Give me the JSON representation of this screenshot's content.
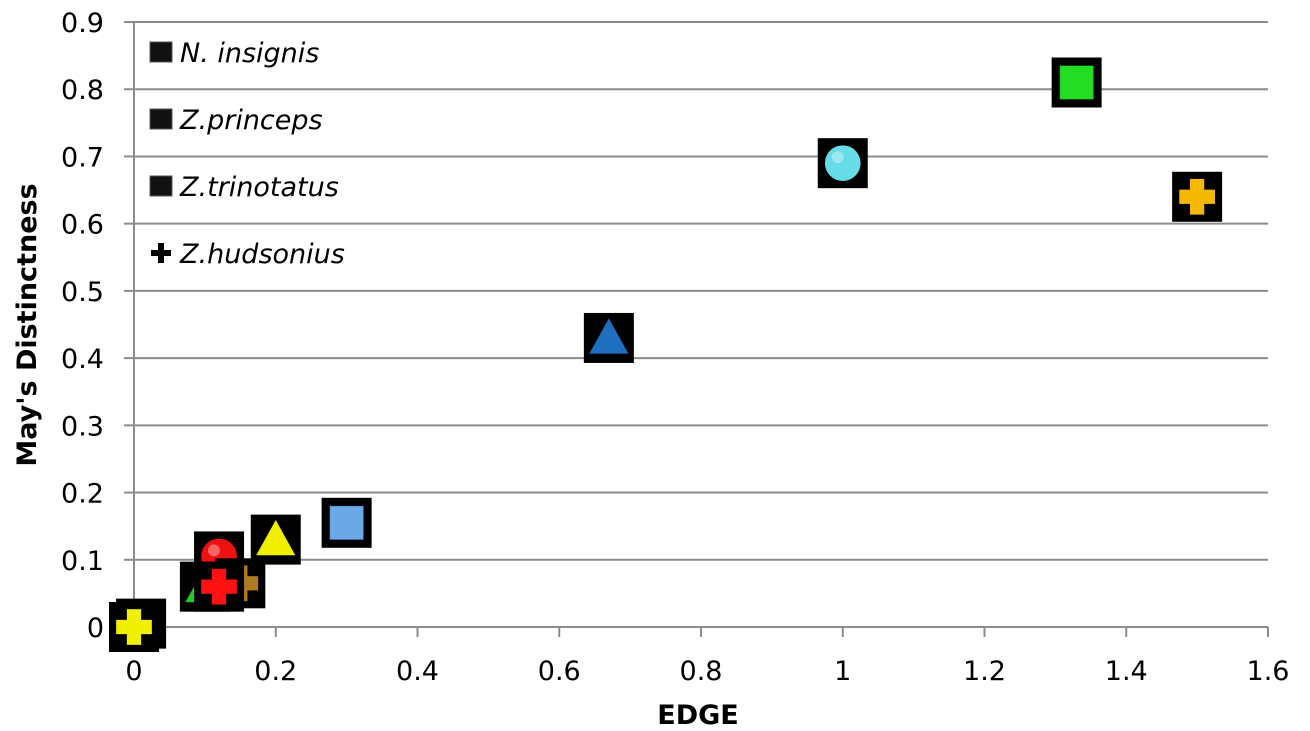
{
  "chart_data": {
    "type": "scatter",
    "title": "",
    "xlabel": "EDGE",
    "ylabel": "May's Distinctness",
    "xlim": [
      0,
      1.6
    ],
    "ylim": [
      0,
      0.9
    ],
    "x_ticks": [
      "0",
      "0.2",
      "0.4",
      "0.6",
      "0.8",
      "1",
      "1.2",
      "1.4",
      "1.6"
    ],
    "y_ticks": [
      "0",
      "0.1",
      "0.2",
      "0.3",
      "0.4",
      "0.5",
      "0.6",
      "0.7",
      "0.8",
      "0.9"
    ],
    "grid": "horizontal",
    "legend_position": "top-left",
    "legend": [
      {
        "name": "N. insignis",
        "marker": "square"
      },
      {
        "name": "Z.princeps",
        "marker": "square"
      },
      {
        "name": "Z.trinotatus",
        "marker": "square"
      },
      {
        "name": "Z.hudsonius",
        "marker": "plus"
      }
    ],
    "points": [
      {
        "x": 1.33,
        "y": 0.81,
        "marker": "square",
        "color": "#22dd22"
      },
      {
        "x": 1.0,
        "y": 0.69,
        "marker": "circle",
        "color": "#66dde8"
      },
      {
        "x": 1.5,
        "y": 0.64,
        "marker": "plus",
        "color": "#f5b800"
      },
      {
        "x": 0.67,
        "y": 0.43,
        "marker": "triangle",
        "color": "#1f6fc0"
      },
      {
        "x": 0.3,
        "y": 0.155,
        "marker": "square",
        "color": "#6aa8e8"
      },
      {
        "x": 0.2,
        "y": 0.13,
        "marker": "triangle",
        "color": "#f0f000"
      },
      {
        "x": 0.12,
        "y": 0.105,
        "marker": "circle",
        "color": "#ee1111"
      },
      {
        "x": 0.1,
        "y": 0.06,
        "marker": "triangle",
        "color": "#22cc22"
      },
      {
        "x": 0.15,
        "y": 0.065,
        "marker": "plus",
        "color": "#b07a20"
      },
      {
        "x": 0.12,
        "y": 0.06,
        "marker": "plus",
        "color": "#ff1111"
      },
      {
        "x": 0.01,
        "y": 0.005,
        "marker": "plus",
        "color": "#44ff44"
      },
      {
        "x": 0.0,
        "y": 0.0,
        "marker": "plus",
        "color": "#f0f000"
      }
    ],
    "colors": {
      "grid": "#8c8c8c",
      "axis": "#8c8c8c",
      "marker_background": "#000000"
    }
  }
}
